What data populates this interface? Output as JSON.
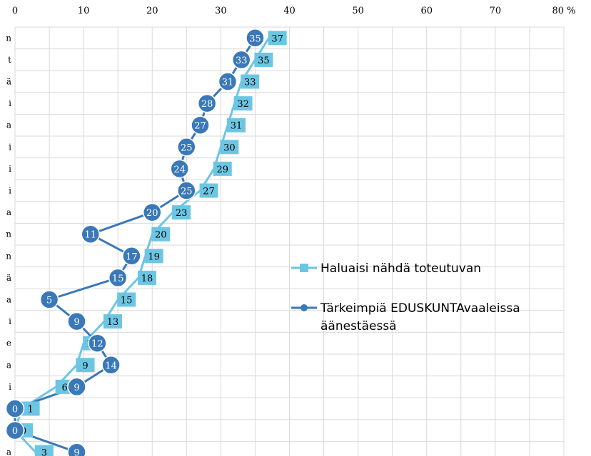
{
  "chart_data": {
    "type": "line",
    "orientation": "horizontal",
    "xlim": [
      0,
      80
    ],
    "x_ticks": [
      "0",
      "10",
      "20",
      "30",
      "40",
      "50",
      "60",
      "70",
      "80 %"
    ],
    "grid": true,
    "legend_position": "right",
    "categories": [
      "n",
      "t",
      "ä",
      "i",
      "a",
      "i",
      "i",
      "i",
      "a",
      "n",
      "n",
      "ä",
      "a",
      "i",
      "e",
      "a",
      "i",
      "P",
      "n",
      "a"
    ],
    "series": [
      {
        "name": "Haluaisi nähdä toteutuvan",
        "color": "#6cc6e3",
        "marker": "square",
        "values": [
          37,
          35,
          33,
          32,
          31,
          30,
          29,
          27,
          23,
          20,
          19,
          18,
          15,
          13,
          10,
          9,
          6,
          1,
          0,
          3
        ]
      },
      {
        "name": "Tärkeimpiä EDUSKUNTAvaaleissa äänestäessä",
        "color": "#3a78b8",
        "marker": "circle",
        "values": [
          35,
          33,
          31,
          28,
          27,
          25,
          24,
          25,
          20,
          11,
          17,
          15,
          5,
          9,
          12,
          14,
          9,
          0,
          0,
          9
        ]
      }
    ]
  }
}
